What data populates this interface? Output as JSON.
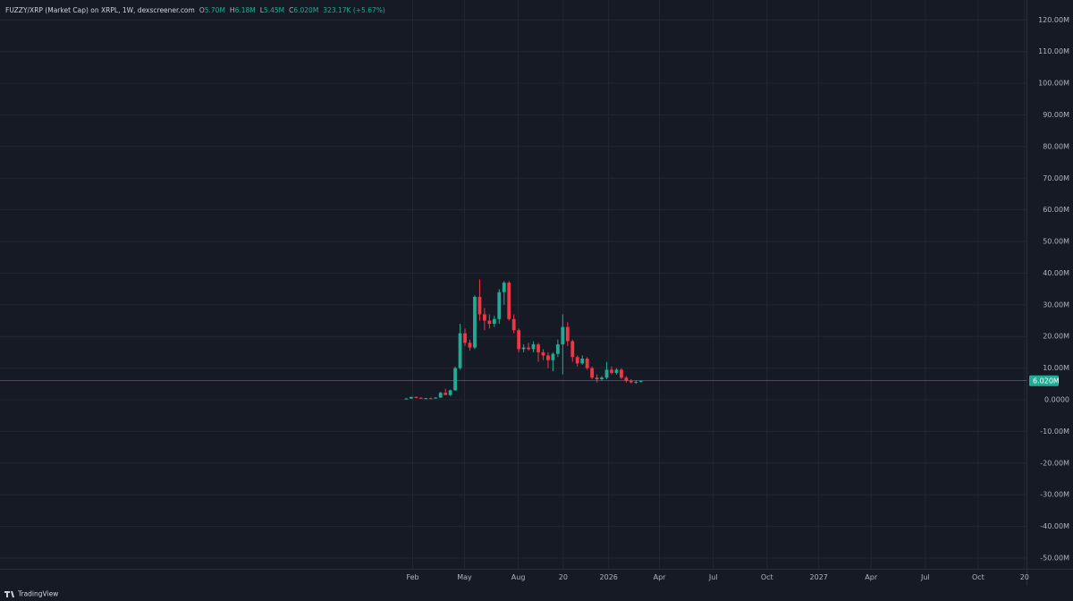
{
  "header": {
    "title": "FUZZY/XRP (Market Cap) on XRPL, 1W, dexscreener.com",
    "ohlc": [
      {
        "label": "O",
        "value": "5.70M"
      },
      {
        "label": "H",
        "value": "6.18M"
      },
      {
        "label": "L",
        "value": "5.45M"
      },
      {
        "label": "C",
        "value": "6.020M"
      }
    ],
    "change": "323.17K (+5.67%)"
  },
  "chart_data": {
    "type": "candlestick",
    "up_color": "#22ab94",
    "down_color": "#f23645",
    "grid": true,
    "x": [
      0,
      1,
      2,
      3,
      4,
      5,
      6,
      7,
      8,
      9,
      10,
      11,
      12,
      13,
      14,
      15,
      16,
      17,
      18,
      19,
      20,
      21,
      22,
      23,
      24,
      25,
      26,
      27,
      28,
      29,
      30,
      31,
      32,
      33,
      34,
      35,
      36,
      37,
      38,
      39,
      40,
      41,
      42,
      43,
      44,
      45,
      46,
      47,
      48
    ],
    "open": [
      0.2,
      0.4,
      0.9,
      0.6,
      0.4,
      0.5,
      0.4,
      0.7,
      2.2,
      1.5,
      3.0,
      10.0,
      21.0,
      18.0,
      16.5,
      32.5,
      27.0,
      25.0,
      24.0,
      25.5,
      34.0,
      37.0,
      25.5,
      22.0,
      16.0,
      16.5,
      16.0,
      17.5,
      15.0,
      14.0,
      12.5,
      14.5,
      17.5,
      23.0,
      18.5,
      13.5,
      11.5,
      13.0,
      10.0,
      7.0,
      6.5,
      7.0,
      9.5,
      8.5,
      9.5,
      7.0,
      6.0,
      5.5,
      5.7
    ],
    "high": [
      0.5,
      1.0,
      1.1,
      0.8,
      0.6,
      0.7,
      0.8,
      2.5,
      3.5,
      3.2,
      10.5,
      24.0,
      22.5,
      19.0,
      33.0,
      38.0,
      29.0,
      27.0,
      26.5,
      35.0,
      37.5,
      37.5,
      27.0,
      22.5,
      17.5,
      18.0,
      18.5,
      18.0,
      16.0,
      15.0,
      15.0,
      19.0,
      27.0,
      24.5,
      19.0,
      14.0,
      14.0,
      13.5,
      10.5,
      8.0,
      7.5,
      12.0,
      10.5,
      10.0,
      10.0,
      7.5,
      6.5,
      6.2,
      6.18
    ],
    "low": [
      0.1,
      0.3,
      0.5,
      0.3,
      0.2,
      0.3,
      0.3,
      0.6,
      1.5,
      1.2,
      2.8,
      9.5,
      17.0,
      15.5,
      16.0,
      25.0,
      22.0,
      22.5,
      23.0,
      24.0,
      30.0,
      25.0,
      21.0,
      15.0,
      15.0,
      15.5,
      15.0,
      12.0,
      12.5,
      10.0,
      9.0,
      13.5,
      8.0,
      17.0,
      12.0,
      10.5,
      11.0,
      9.5,
      6.5,
      5.5,
      6.0,
      6.5,
      8.0,
      8.0,
      6.5,
      5.5,
      5.2,
      5.0,
      5.45
    ],
    "close": [
      0.4,
      0.9,
      0.6,
      0.4,
      0.5,
      0.4,
      0.7,
      2.2,
      1.5,
      3.0,
      10.0,
      21.0,
      18.0,
      16.5,
      32.5,
      27.0,
      25.0,
      24.0,
      25.5,
      34.0,
      37.0,
      25.5,
      22.0,
      16.0,
      16.5,
      16.0,
      17.5,
      15.0,
      14.0,
      12.5,
      14.5,
      17.5,
      23.0,
      18.5,
      13.5,
      11.5,
      13.0,
      10.0,
      7.0,
      6.5,
      7.0,
      9.5,
      8.5,
      9.5,
      7.0,
      6.0,
      5.5,
      5.7,
      6.02
    ],
    "xlim": [
      -83.15,
      126.9
    ],
    "xticks": [
      {
        "value": 1.3,
        "label": "Feb"
      },
      {
        "value": 11.9,
        "label": "May"
      },
      {
        "value": 22.9,
        "label": "Aug"
      },
      {
        "value": 32.1,
        "label": "20"
      },
      {
        "value": 41.4,
        "label": "2026"
      },
      {
        "value": 51.8,
        "label": "Apr"
      },
      {
        "value": 62.8,
        "label": "Jul"
      },
      {
        "value": 73.8,
        "label": "Oct"
      },
      {
        "value": 84.4,
        "label": "2027"
      },
      {
        "value": 95.1,
        "label": "Apr"
      },
      {
        "value": 106.2,
        "label": "Jul"
      },
      {
        "value": 117.0,
        "label": "Oct"
      },
      {
        "value": 126.5,
        "label": "20"
      }
    ],
    "ylim": [
      -53.4,
      126.3
    ],
    "yticks": [
      {
        "value": 120,
        "label": "120.00M"
      },
      {
        "value": 110,
        "label": "110.00M"
      },
      {
        "value": 100,
        "label": "100.00M"
      },
      {
        "value": 90,
        "label": "90.00M"
      },
      {
        "value": 80,
        "label": "80.00M"
      },
      {
        "value": 70,
        "label": "70.00M"
      },
      {
        "value": 60,
        "label": "60.00M"
      },
      {
        "value": 50,
        "label": "50.00M"
      },
      {
        "value": 40,
        "label": "40.00M"
      },
      {
        "value": 30,
        "label": "30.00M"
      },
      {
        "value": 20,
        "label": "20.00M"
      },
      {
        "value": 10,
        "label": "10.00M"
      },
      {
        "value": 0,
        "label": "0.0000"
      },
      {
        "value": -10,
        "label": "-10.00M"
      },
      {
        "value": -20,
        "label": "-20.00M"
      },
      {
        "value": -30,
        "label": "-30.00M"
      },
      {
        "value": -40,
        "label": "-40.00M"
      },
      {
        "value": -50,
        "label": "-50.00M"
      }
    ],
    "last_price": 6.02,
    "last_price_label": "6.020M"
  },
  "footer": {
    "brand": "TradingView"
  }
}
